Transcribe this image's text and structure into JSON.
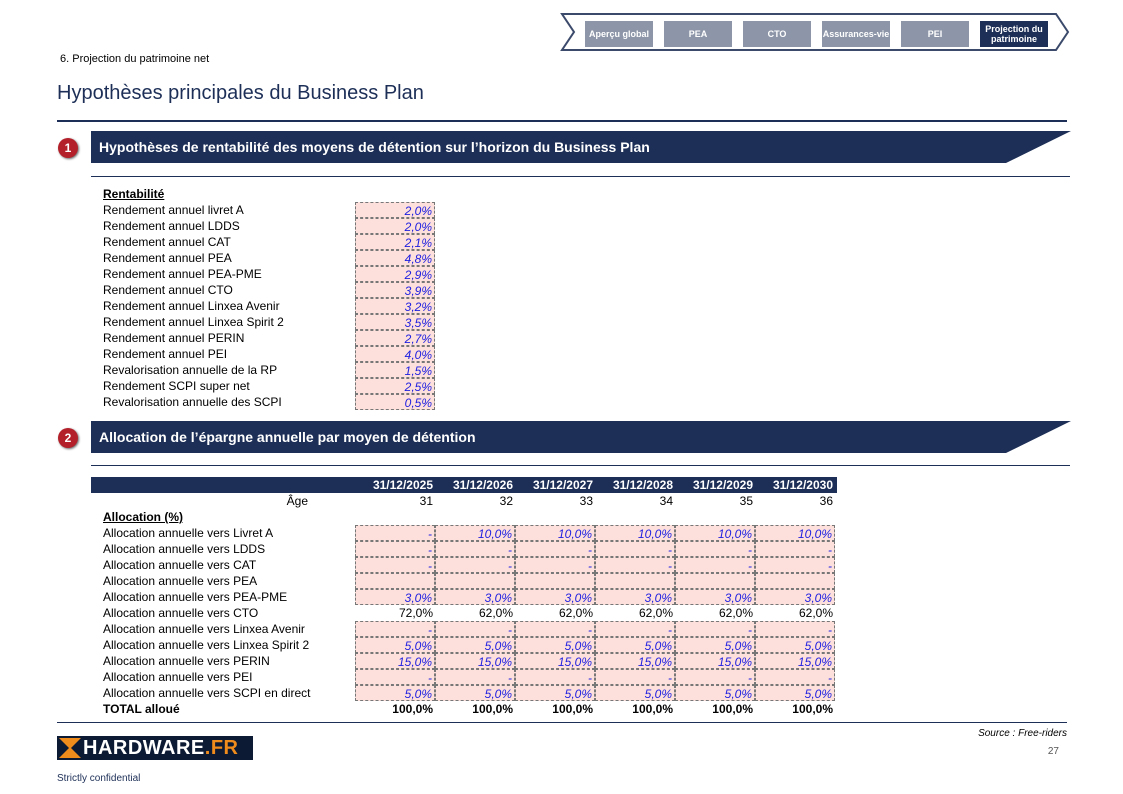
{
  "nav": {
    "items": [
      "Aperçu global",
      "PEA",
      "CTO",
      "Assurances-vie",
      "PEI",
      "Projection du patrimoine"
    ],
    "active": 5
  },
  "breadcrumb": "6. Projection du patrimoine net",
  "title": "Hypothèses principales du Business Plan",
  "section1": {
    "num": "1",
    "title": "Hypothèses de rentabilité des moyens de détention sur l’horizon du Business Plan"
  },
  "rentabilite": {
    "heading": "Rentabilité",
    "rows": [
      {
        "label": "Rendement annuel livret A",
        "value": "2,0%"
      },
      {
        "label": "Rendement annuel LDDS",
        "value": "2,0%"
      },
      {
        "label": "Rendement annuel CAT",
        "value": "2,1%"
      },
      {
        "label": "Rendement annuel PEA",
        "value": "4,8%"
      },
      {
        "label": "Rendement annuel PEA-PME",
        "value": "2,9%"
      },
      {
        "label": "Rendement annuel CTO",
        "value": "3,9%"
      },
      {
        "label": "Rendement annuel Linxea Avenir",
        "value": "3,2%"
      },
      {
        "label": "Rendement annuel Linxea Spirit 2",
        "value": "3,5%"
      },
      {
        "label": "Rendement annuel PERIN",
        "value": "2,7%"
      },
      {
        "label": "Rendement annuel PEI",
        "value": "4,0%"
      },
      {
        "label": "Revalorisation annuelle de la RP",
        "value": "1,5%"
      },
      {
        "label": "Rendement SCPI super net",
        "value": "2,5%"
      },
      {
        "label": "Revalorisation annuelle des SCPI",
        "value": "0,5%"
      }
    ]
  },
  "section2": {
    "num": "2",
    "title": "Allocation de l’épargne annuelle par moyen de détention"
  },
  "allocation": {
    "dates": [
      "31/12/2025",
      "31/12/2026",
      "31/12/2027",
      "31/12/2028",
      "31/12/2029",
      "31/12/2030"
    ],
    "age_label": "Âge",
    "ages": [
      "31",
      "32",
      "33",
      "34",
      "35",
      "36"
    ],
    "heading": "Allocation (%)",
    "rows": [
      {
        "label": "Allocation annuelle vers Livret A",
        "input": true,
        "values": [
          "-",
          "10,0%",
          "10,0%",
          "10,0%",
          "10,0%",
          "10,0%"
        ]
      },
      {
        "label": "Allocation annuelle vers LDDS",
        "input": true,
        "values": [
          "-",
          "-",
          "-",
          "-",
          "-",
          "-"
        ]
      },
      {
        "label": "Allocation annuelle vers CAT",
        "input": true,
        "values": [
          "-",
          "-",
          "-",
          "-",
          "-",
          "-"
        ]
      },
      {
        "label": "Allocation annuelle vers PEA",
        "input": true,
        "values": [
          "",
          "",
          "",
          "",
          "",
          ""
        ]
      },
      {
        "label": "Allocation annuelle vers PEA-PME",
        "input": true,
        "values": [
          "3,0%",
          "3,0%",
          "3,0%",
          "3,0%",
          "3,0%",
          "3,0%"
        ]
      },
      {
        "label": "Allocation annuelle vers CTO",
        "input": false,
        "values": [
          "72,0%",
          "62,0%",
          "62,0%",
          "62,0%",
          "62,0%",
          "62,0%"
        ]
      },
      {
        "label": "Allocation annuelle vers Linxea Avenir",
        "input": true,
        "values": [
          "-",
          "-",
          "-",
          "-",
          "-",
          "-"
        ]
      },
      {
        "label": "Allocation annuelle vers Linxea Spirit 2",
        "input": true,
        "values": [
          "5,0%",
          "5,0%",
          "5,0%",
          "5,0%",
          "5,0%",
          "5,0%"
        ]
      },
      {
        "label": "Allocation annuelle vers PERIN",
        "input": true,
        "values": [
          "15,0%",
          "15,0%",
          "15,0%",
          "15,0%",
          "15,0%",
          "15,0%"
        ]
      },
      {
        "label": "Allocation annuelle vers PEI",
        "input": true,
        "values": [
          "-",
          "-",
          "-",
          "-",
          "-",
          "-"
        ]
      },
      {
        "label": "Allocation annuelle vers SCPI en direct",
        "input": true,
        "values": [
          "5,0%",
          "5,0%",
          "5,0%",
          "5,0%",
          "5,0%",
          "5,0%"
        ]
      }
    ],
    "total_label": "TOTAL alloué",
    "totals": [
      "100,0%",
      "100,0%",
      "100,0%",
      "100,0%",
      "100,0%",
      "100,0%"
    ]
  },
  "source": "Source : Free-riders",
  "page_number": "27",
  "logo_text": "HARDWARE.FR",
  "footer": "Strictly confidential",
  "colors": {
    "navy": "#1d2f57",
    "input_bg": "#fde0dc",
    "input_text": "#2020e0",
    "badge": "#b3202a"
  }
}
